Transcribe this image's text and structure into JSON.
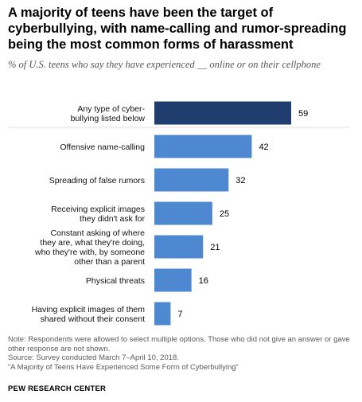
{
  "chart_data": {
    "type": "bar",
    "orientation": "horizontal",
    "title": "A majority of teens have been the target of cyberbullying, with name-calling and rumor-spreading being the most common forms of harassment",
    "subtitle": "% of U.S. teens who say they have experienced __ online or on their cellphone",
    "categories": [
      [
        "Any type of cyber-",
        "bullying listed below"
      ],
      [
        "Offensive name-calling"
      ],
      [
        "Spreading of false rumors"
      ],
      [
        "Receiving explicit images",
        "they didn't ask for"
      ],
      [
        "Constant asking of where",
        "they are, what they're doing,",
        "who they're with, by someone",
        "other than a parent"
      ],
      [
        "Physical threats"
      ],
      [
        "Having explicit images of them",
        "shared without their consent"
      ]
    ],
    "values": [
      59,
      42,
      32,
      25,
      21,
      16,
      7
    ],
    "data_labels": [
      "59",
      "42",
      "32",
      "25",
      "21",
      "16",
      "7"
    ],
    "bar_colors": [
      "#1f3d6e",
      "#4e88d0",
      "#4e88d0",
      "#4e88d0",
      "#4e88d0",
      "#4e88d0",
      "#4e88d0"
    ],
    "xlim": [
      0,
      60
    ],
    "grid": false
  },
  "notes": [
    "Note: Respondents were allowed to select multiple options. Those who did not give an answer or gave other response are not shown.",
    "Source: Survey conducted March 7–April 10, 2018.",
    "“A Majority of Teens Have Experienced Some Form of Cyberbullying”"
  ],
  "brand": "PEW RESEARCH CENTER"
}
